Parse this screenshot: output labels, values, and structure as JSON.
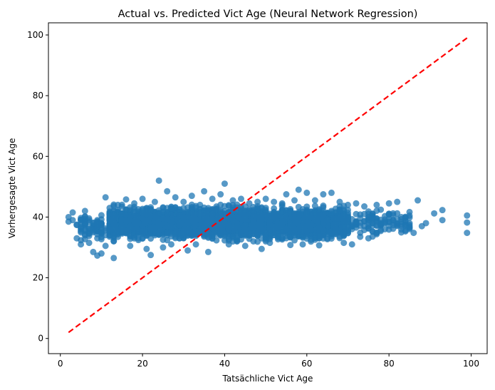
{
  "chart_data": {
    "type": "scatter",
    "title": "Actual vs. Predicted Vict Age (Neural Network Regression)",
    "xlabel": "Tatsächliche Vict Age",
    "ylabel": "Vorhergesagte Vict Age",
    "xlim": [
      -2.9,
      103.9
    ],
    "ylim": [
      -5.0,
      104.0
    ],
    "x_ticks": [
      0,
      20,
      40,
      60,
      80,
      100
    ],
    "y_ticks": [
      0,
      20,
      40,
      60,
      80,
      100
    ],
    "grid": false,
    "legend": "none",
    "point_color": "#1f77b4",
    "point_alpha": 0.75,
    "reference_line": {
      "x": [
        2,
        99
      ],
      "y": [
        2,
        99
      ],
      "color": "#ff0000",
      "style": "dashed"
    },
    "points": [
      [
        2,
        40
      ],
      [
        2,
        38.5
      ],
      [
        3,
        39
      ],
      [
        3,
        41.5
      ],
      [
        4,
        33
      ],
      [
        4,
        37.5
      ],
      [
        5,
        36
      ],
      [
        5,
        31
      ],
      [
        6,
        35.5
      ],
      [
        6,
        42
      ],
      [
        7,
        39
      ],
      [
        7,
        31.5
      ],
      [
        8,
        28.5
      ],
      [
        8,
        35
      ],
      [
        9,
        27.3
      ],
      [
        9,
        33
      ],
      [
        10,
        34.5
      ],
      [
        10,
        28
      ],
      [
        11,
        46.5
      ],
      [
        11,
        30.5
      ],
      [
        12,
        43
      ],
      [
        12,
        36
      ],
      [
        13,
        26.5
      ],
      [
        13,
        32
      ],
      [
        14,
        44
      ],
      [
        15,
        39
      ],
      [
        16,
        45.8
      ],
      [
        17,
        30.5
      ],
      [
        18,
        44.5
      ],
      [
        19,
        35
      ],
      [
        20,
        46
      ],
      [
        21,
        29.5
      ],
      [
        22,
        27.5
      ],
      [
        23,
        45
      ],
      [
        24,
        52
      ],
      [
        25,
        30
      ],
      [
        26,
        48.5
      ],
      [
        27,
        31
      ],
      [
        28,
        46.5
      ],
      [
        29,
        33
      ],
      [
        30,
        45
      ],
      [
        31,
        29
      ],
      [
        32,
        47
      ],
      [
        33,
        31
      ],
      [
        34,
        44
      ],
      [
        35,
        48.5
      ],
      [
        36,
        28.5
      ],
      [
        37,
        46
      ],
      [
        38,
        42.5
      ],
      [
        39,
        47.5
      ],
      [
        40,
        51
      ],
      [
        41,
        31
      ],
      [
        42,
        45.5
      ],
      [
        43,
        32.5
      ],
      [
        44,
        46
      ],
      [
        45,
        30.5
      ],
      [
        46,
        44.5
      ],
      [
        47,
        32
      ],
      [
        48,
        45
      ],
      [
        49,
        29.5
      ],
      [
        50,
        46
      ],
      [
        51,
        31.5
      ],
      [
        52,
        45
      ],
      [
        53,
        33.5
      ],
      [
        54,
        44.5
      ],
      [
        55,
        47.5
      ],
      [
        56,
        30.8
      ],
      [
        57,
        45.5
      ],
      [
        58,
        49
      ],
      [
        59,
        31
      ],
      [
        60,
        48
      ],
      [
        61,
        32.5
      ],
      [
        62,
        45.5
      ],
      [
        63,
        30.7
      ],
      [
        64,
        47.5
      ],
      [
        65,
        33
      ],
      [
        66,
        48
      ],
      [
        67,
        34.5
      ],
      [
        68,
        45
      ],
      [
        69,
        31.5
      ],
      [
        70,
        44
      ],
      [
        71,
        31
      ],
      [
        72,
        44.5
      ],
      [
        73,
        33.5
      ],
      [
        74,
        43.5
      ],
      [
        75,
        33
      ],
      [
        76,
        41
      ],
      [
        77,
        44
      ],
      [
        78,
        38
      ],
      [
        79,
        36
      ],
      [
        80,
        44.5
      ],
      [
        81,
        39
      ],
      [
        82,
        45
      ],
      [
        83,
        40
      ],
      [
        84,
        37
      ],
      [
        85,
        36.5
      ],
      [
        86,
        34.8
      ],
      [
        87,
        45.5
      ],
      [
        88,
        37
      ],
      [
        89,
        38
      ],
      [
        91,
        41.2
      ],
      [
        93,
        39
      ],
      [
        93,
        42.3
      ],
      [
        99,
        40.5
      ],
      [
        99,
        38.2
      ],
      [
        99,
        34.8
      ],
      [
        15,
        36
      ],
      [
        17,
        40
      ],
      [
        19,
        38
      ],
      [
        21,
        41
      ],
      [
        23,
        36.5
      ],
      [
        25,
        39.5
      ],
      [
        27,
        37
      ],
      [
        29,
        40.5
      ],
      [
        31,
        36
      ],
      [
        33,
        39
      ],
      [
        35,
        37.5
      ],
      [
        37,
        41
      ],
      [
        39,
        36
      ],
      [
        41,
        39.5
      ],
      [
        43,
        37
      ],
      [
        45,
        40
      ],
      [
        47,
        36.5
      ],
      [
        49,
        39
      ],
      [
        51,
        37.5
      ],
      [
        53,
        41
      ],
      [
        55,
        36
      ],
      [
        57,
        39.5
      ],
      [
        59,
        37
      ],
      [
        61,
        40
      ],
      [
        63,
        36.5
      ],
      [
        65,
        39
      ],
      [
        67,
        37.5
      ],
      [
        69,
        40.5
      ],
      [
        72,
        38
      ],
      [
        75,
        40
      ]
    ],
    "bands": [
      {
        "x": [
          4,
          12
        ],
        "y": [
          31,
          42
        ],
        "n": 80
      },
      {
        "x": [
          12,
          70
        ],
        "y": [
          31,
          45
        ],
        "n": 3000
      },
      {
        "x": [
          15,
          65
        ],
        "y": [
          34,
          42
        ],
        "n": 1600
      },
      {
        "x": [
          70,
          85
        ],
        "y": [
          33,
          44
        ],
        "n": 120
      }
    ]
  }
}
